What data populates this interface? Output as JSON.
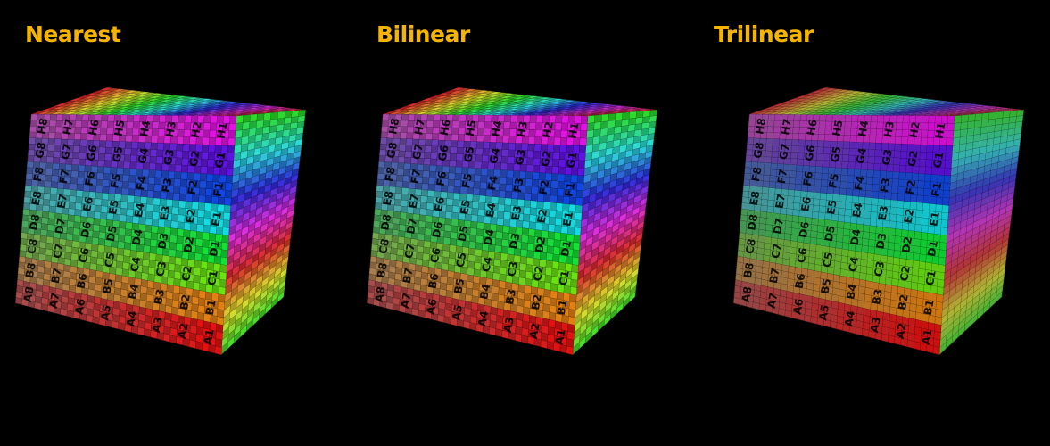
{
  "panels": [
    {
      "title": "Nearest",
      "mode": "nearest"
    },
    {
      "title": "Bilinear",
      "mode": "bilinear"
    },
    {
      "title": "Trilinear",
      "mode": "trilinear"
    }
  ],
  "colors": {
    "background": "#000000",
    "title": "#f5b400"
  },
  "cell_labels": {
    "rows": [
      "A",
      "B",
      "C",
      "D",
      "E",
      "F",
      "G",
      "H"
    ],
    "columns": [
      "1",
      "2",
      "3",
      "4",
      "5",
      "6",
      "7",
      "8"
    ]
  }
}
